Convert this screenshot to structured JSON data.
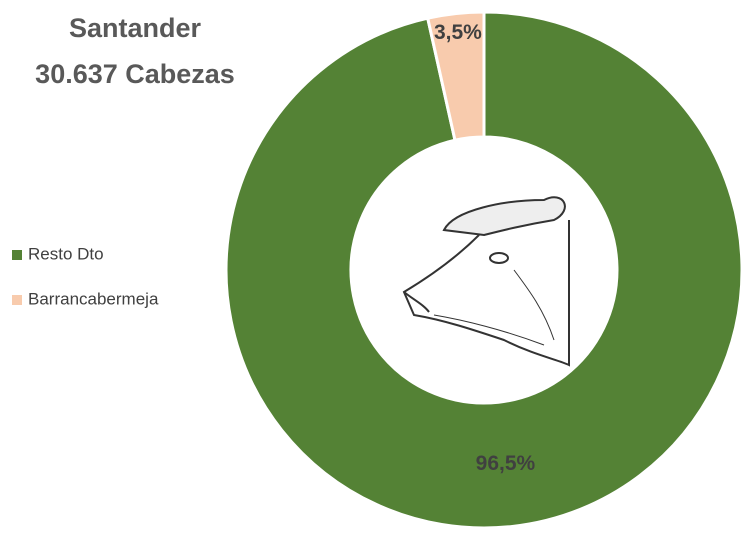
{
  "chart_data": {
    "type": "pie",
    "title": "Santander",
    "subtitle": "30.637 Cabezas",
    "categories": [
      "Resto Dto",
      "Barrancabermeja"
    ],
    "values": [
      96.5,
      3.5
    ],
    "value_labels": [
      "96,5%",
      "3,5%"
    ],
    "colors": [
      "#548235",
      "#f8cbad"
    ],
    "donut": true,
    "legend": "left"
  }
}
